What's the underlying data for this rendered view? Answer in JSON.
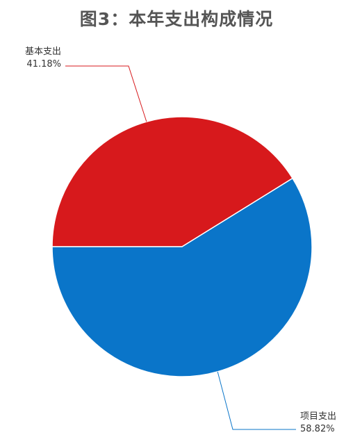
{
  "chart_data": {
    "type": "pie",
    "title": "图3：本年支出构成情况",
    "slices": [
      {
        "name": "基本支出",
        "value": 41.18,
        "value_label": "41.18%",
        "color": "#d7191c"
      },
      {
        "name": "项目支出",
        "value": 58.82,
        "value_label": "58.82%",
        "color": "#0a75c9"
      }
    ],
    "legend": "none",
    "labels": "outside with leader lines"
  }
}
